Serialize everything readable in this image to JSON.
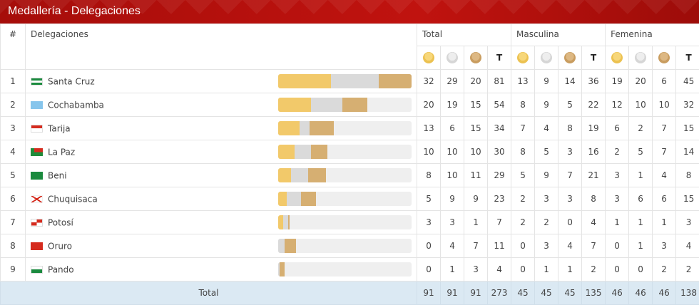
{
  "header": {
    "title": "Medallería - Delegaciones"
  },
  "columns": {
    "rank": "#",
    "delegation": "Delegaciones",
    "groups": [
      "Total",
      "Masculina",
      "Femenina"
    ],
    "total_short": "T"
  },
  "colors": {
    "gold": "#f2c96a",
    "silver": "#dadada",
    "bronze": "#d6af72",
    "header_red": "#b5100c",
    "total_row_bg": "#dbe9f3"
  },
  "bar_max": 81,
  "rows": [
    {
      "rank": "1",
      "name": "Santa Cruz",
      "flag": "green-white-green",
      "total": [
        "32",
        "29",
        "20",
        "81"
      ],
      "masc": [
        "13",
        "9",
        "14",
        "36"
      ],
      "fem": [
        "19",
        "20",
        "6",
        "45"
      ]
    },
    {
      "rank": "2",
      "name": "Cochabamba",
      "flag": "sky-blue",
      "total": [
        "20",
        "19",
        "15",
        "54"
      ],
      "masc": [
        "8",
        "9",
        "5",
        "22"
      ],
      "fem": [
        "12",
        "10",
        "10",
        "32"
      ]
    },
    {
      "rank": "3",
      "name": "Tarija",
      "flag": "red-white",
      "total": [
        "13",
        "6",
        "15",
        "34"
      ],
      "masc": [
        "7",
        "4",
        "8",
        "19"
      ],
      "fem": [
        "6",
        "2",
        "7",
        "15"
      ]
    },
    {
      "rank": "4",
      "name": "La Paz",
      "flag": "red-green",
      "total": [
        "10",
        "10",
        "10",
        "30"
      ],
      "masc": [
        "8",
        "5",
        "3",
        "16"
      ],
      "fem": [
        "2",
        "5",
        "7",
        "14"
      ]
    },
    {
      "rank": "5",
      "name": "Beni",
      "flag": "green",
      "total": [
        "8",
        "10",
        "11",
        "29"
      ],
      "masc": [
        "5",
        "9",
        "7",
        "21"
      ],
      "fem": [
        "3",
        "1",
        "4",
        "8"
      ]
    },
    {
      "rank": "6",
      "name": "Chuquisaca",
      "flag": "saltire",
      "total": [
        "5",
        "9",
        "9",
        "23"
      ],
      "masc": [
        "2",
        "3",
        "3",
        "8"
      ],
      "fem": [
        "3",
        "6",
        "6",
        "15"
      ]
    },
    {
      "rank": "7",
      "name": "Potosí",
      "flag": "red-white-quarters",
      "total": [
        "3",
        "3",
        "1",
        "7"
      ],
      "masc": [
        "2",
        "2",
        "0",
        "4"
      ],
      "fem": [
        "1",
        "1",
        "1",
        "3"
      ]
    },
    {
      "rank": "8",
      "name": "Oruro",
      "flag": "red",
      "total": [
        "0",
        "4",
        "7",
        "11"
      ],
      "masc": [
        "0",
        "3",
        "4",
        "7"
      ],
      "fem": [
        "0",
        "1",
        "3",
        "4"
      ]
    },
    {
      "rank": "9",
      "name": "Pando",
      "flag": "white-green",
      "total": [
        "0",
        "1",
        "3",
        "4"
      ],
      "masc": [
        "0",
        "1",
        "1",
        "2"
      ],
      "fem": [
        "0",
        "0",
        "2",
        "2"
      ]
    }
  ],
  "totals": {
    "label": "Total",
    "total": [
      "91",
      "91",
      "91",
      "273"
    ],
    "masc": [
      "45",
      "45",
      "45",
      "135"
    ],
    "fem": [
      "46",
      "46",
      "46",
      "138"
    ]
  }
}
